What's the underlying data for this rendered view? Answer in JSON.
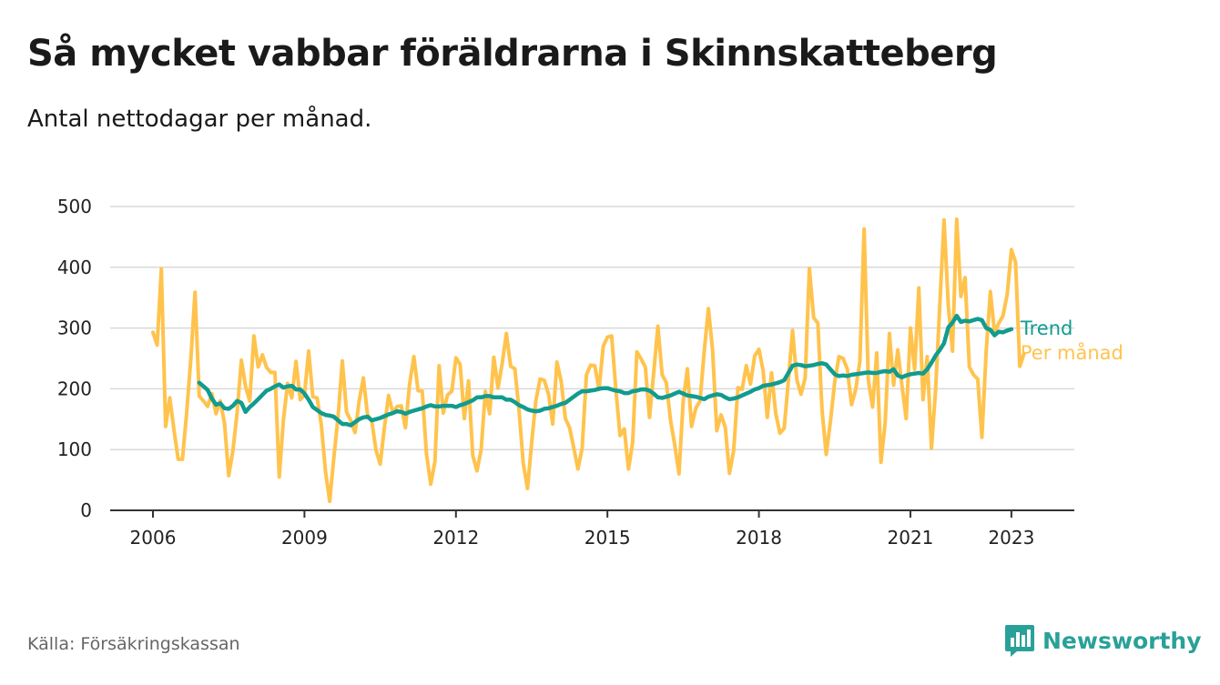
{
  "header": {
    "title": "Så mycket vabbar föräldrarna i Skinnskatteberg",
    "subtitle": "Antal nettodagar per månad."
  },
  "footer": {
    "source": "Källa: Försäkringskassan",
    "brand": "Newsworthy",
    "brand_icon": "newsworthy-logo-icon"
  },
  "colors": {
    "trend": "#129b8f",
    "monthly": "#ffc34d",
    "grid": "#d9d9d9",
    "axis": "#333333",
    "brand": "#2aa198"
  },
  "chart_data": {
    "type": "line",
    "x_start": "2006-01",
    "x_ticks": [
      "2006",
      "2009",
      "2012",
      "2015",
      "2018",
      "2021",
      "2023"
    ],
    "y_ticks": [
      0,
      100,
      200,
      300,
      400,
      500
    ],
    "ylim": [
      0,
      500
    ],
    "grid": "horizontal",
    "legend": "direct labels at right end of lines",
    "series": [
      {
        "name": "Per månad",
        "start": "2006-01",
        "values": [
          293,
          272,
          397,
          138,
          185,
          132,
          84,
          84,
          160,
          249,
          359,
          188,
          180,
          171,
          192,
          159,
          180,
          143,
          57,
          98,
          160,
          247,
          204,
          180,
          287,
          236,
          256,
          235,
          227,
          227,
          55,
          149,
          209,
          185,
          245,
          182,
          190,
          262,
          187,
          185,
          141,
          64,
          15,
          87,
          155,
          246,
          162,
          148,
          128,
          180,
          218,
          157,
          147,
          99,
          76,
          136,
          189,
          160,
          171,
          172,
          136,
          208,
          253,
          197,
          196,
          93,
          43,
          80,
          238,
          160,
          190,
          196,
          251,
          240,
          151,
          213,
          90,
          65,
          100,
          196,
          159,
          252,
          201,
          242,
          291,
          237,
          233,
          165,
          78,
          36,
          112,
          181,
          216,
          214,
          191,
          142,
          244,
          213,
          151,
          136,
          103,
          68,
          102,
          223,
          239,
          238,
          199,
          270,
          285,
          287,
          200,
          123,
          134,
          68,
          112,
          261,
          249,
          236,
          153,
          226,
          303,
          223,
          210,
          148,
          108,
          60,
          180,
          233,
          138,
          168,
          180,
          262,
          332,
          263,
          131,
          157,
          137,
          61,
          98,
          202,
          199,
          238,
          208,
          254,
          265,
          230,
          153,
          226,
          159,
          127,
          135,
          213,
          296,
          215,
          191,
          218,
          398,
          317,
          308,
          165,
          92,
          146,
          211,
          253,
          250,
          233,
          174,
          199,
          246,
          463,
          215,
          170,
          259,
          79,
          144,
          291,
          206,
          264,
          205,
          151,
          300,
          232,
          366,
          182,
          253,
          102,
          200,
          340,
          478,
          336,
          262,
          479,
          352,
          383,
          236,
          223,
          216,
          120,
          262,
          360,
          292,
          308,
          320,
          356,
          429,
          408,
          237,
          258
        ]
      },
      {
        "name": "Trend",
        "start": "2006-12",
        "values": [
          210,
          204,
          198,
          184,
          174,
          176,
          168,
          167,
          172,
          180,
          177,
          162,
          170,
          176,
          183,
          190,
          197,
          200,
          204,
          207,
          202,
          204,
          205,
          199,
          199,
          192,
          182,
          170,
          165,
          160,
          157,
          156,
          154,
          148,
          142,
          142,
          140,
          145,
          150,
          153,
          154,
          148,
          150,
          152,
          155,
          158,
          160,
          163,
          162,
          159,
          162,
          164,
          166,
          168,
          171,
          173,
          171,
          171,
          172,
          172,
          172,
          170,
          173,
          175,
          178,
          181,
          186,
          186,
          188,
          188,
          186,
          186,
          186,
          182,
          182,
          178,
          173,
          170,
          166,
          164,
          163,
          164,
          167,
          168,
          170,
          172,
          175,
          177,
          182,
          187,
          192,
          196,
          196,
          197,
          198,
          200,
          201,
          201,
          199,
          197,
          196,
          193,
          193,
          196,
          197,
          199,
          199,
          197,
          192,
          186,
          185,
          187,
          189,
          192,
          195,
          192,
          189,
          188,
          187,
          185,
          183,
          187,
          189,
          191,
          190,
          186,
          183,
          184,
          186,
          189,
          192,
          195,
          199,
          201,
          205,
          206,
          207,
          209,
          211,
          214,
          226,
          238,
          240,
          239,
          237,
          238,
          239,
          241,
          242,
          240,
          232,
          224,
          221,
          222,
          221,
          223,
          224,
          225,
          226,
          227,
          226,
          226,
          228,
          229,
          228,
          232,
          222,
          219,
          222,
          224,
          225,
          226,
          225,
          232,
          243,
          255,
          264,
          275,
          301,
          309,
          320,
          310,
          312,
          311,
          313,
          315,
          313,
          300,
          297,
          288,
          294,
          293,
          296,
          298
        ]
      }
    ]
  }
}
